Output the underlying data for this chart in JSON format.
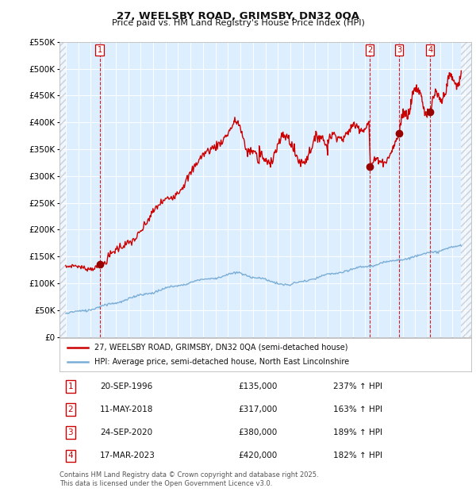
{
  "title1": "27, WEELSBY ROAD, GRIMSBY, DN32 0QA",
  "title2": "Price paid vs. HM Land Registry's House Price Index (HPI)",
  "legend_line1": "27, WEELSBY ROAD, GRIMSBY, DN32 0QA (semi-detached house)",
  "legend_line2": "HPI: Average price, semi-detached house, North East Lincolnshire",
  "footer1": "Contains HM Land Registry data © Crown copyright and database right 2025.",
  "footer2": "This data is licensed under the Open Government Licence v3.0.",
  "red_color": "#cc0000",
  "blue_color": "#7aaed6",
  "bg_color": "#ddeeff",
  "grid_color": "#ffffff",
  "vline_color": "#cc0000",
  "ylim": [
    0,
    550000
  ],
  "yticks": [
    0,
    50000,
    100000,
    150000,
    200000,
    250000,
    300000,
    350000,
    400000,
    450000,
    500000,
    550000
  ],
  "xlim_start": 1993.5,
  "xlim_end": 2026.5,
  "sale_years": [
    1996.72,
    2018.36,
    2020.73,
    2023.21
  ],
  "sale_prices": [
    135000,
    317000,
    380000,
    420000
  ],
  "table_rows": [
    {
      "num": "1",
      "date": "20-SEP-1996",
      "price": "£135,000",
      "pct": "237% ↑ HPI"
    },
    {
      "num": "2",
      "date": "11-MAY-2018",
      "price": "£317,000",
      "pct": "163% ↑ HPI"
    },
    {
      "num": "3",
      "date": "24-SEP-2020",
      "price": "£380,000",
      "pct": "189% ↑ HPI"
    },
    {
      "num": "4",
      "date": "17-MAR-2023",
      "price": "£420,000",
      "pct": "182% ↑ HPI"
    }
  ]
}
